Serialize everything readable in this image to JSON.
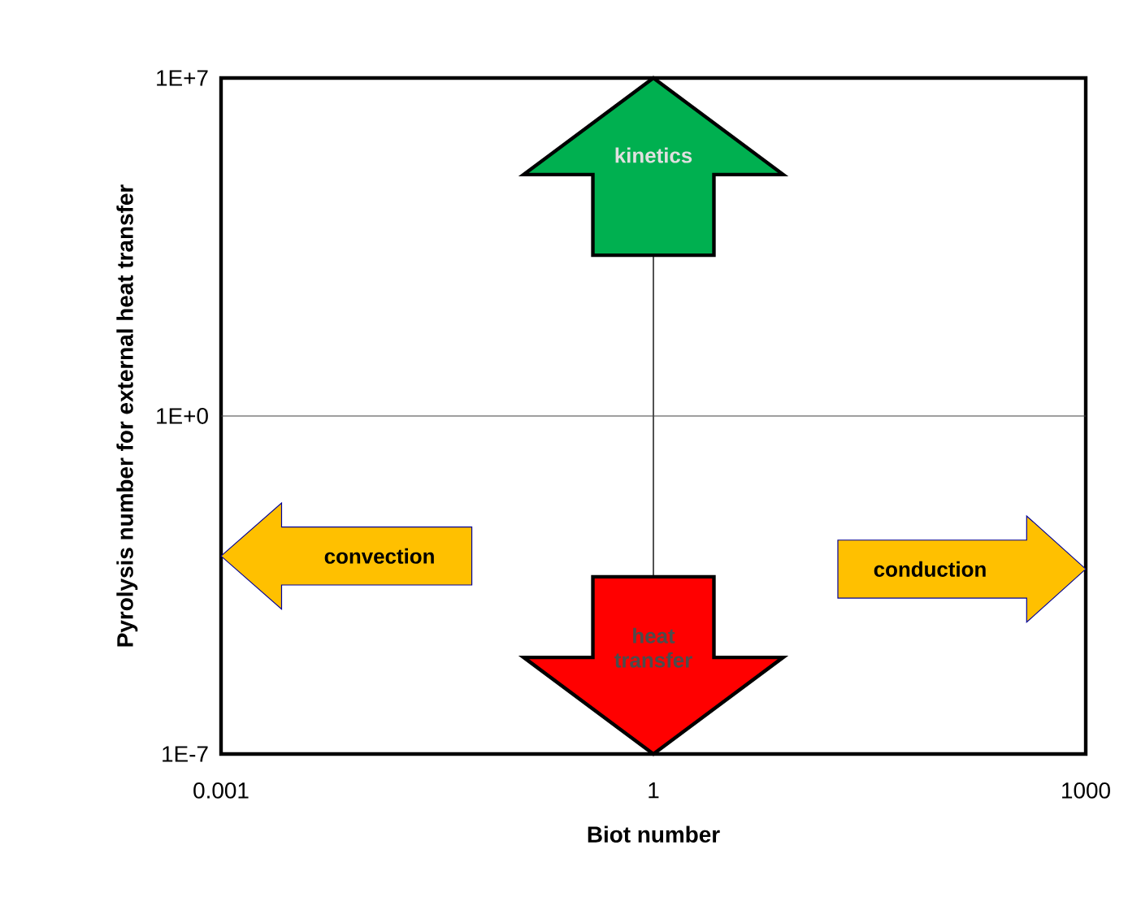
{
  "chart_data": {
    "type": "scatter",
    "xlabel": "Biot number",
    "ylabel": "Pyrolysis number for external heat transfer",
    "log": "xy",
    "xlim": [
      0.001,
      1000
    ],
    "ylim": [
      1e-07,
      10000000.0
    ],
    "xticks": [
      {
        "value": 0.001,
        "label": "0.001"
      },
      {
        "value": 1,
        "label": "1"
      },
      {
        "value": 1000,
        "label": "1000"
      }
    ],
    "yticks": [
      {
        "value": 1e-07,
        "label": "1E-7"
      },
      {
        "value": 1,
        "label": "1E+0"
      },
      {
        "value": 10000000.0,
        "label": "1E+7"
      }
    ],
    "ref_lines": [
      {
        "axis": "x",
        "value": 1
      },
      {
        "axis": "y",
        "value": 1
      }
    ],
    "annotations": [
      "kinetics",
      "heat transfer",
      "convection",
      "conduction"
    ]
  }
}
